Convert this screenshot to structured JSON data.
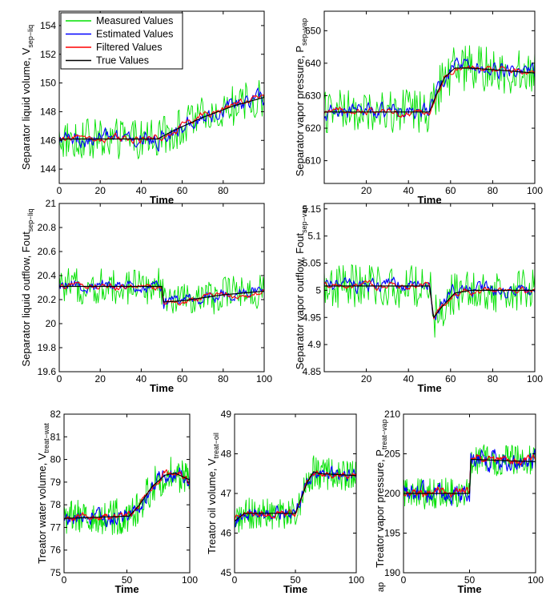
{
  "figure": {
    "legend_entries": [
      {
        "label": "Measured Values",
        "color": "#00e000"
      },
      {
        "label": "Estimated  Values",
        "color": "#0000ff"
      },
      {
        "label": "Filtered Values",
        "color": "#ff0000"
      },
      {
        "label": "True Values",
        "color": "#000000"
      }
    ],
    "cropped_label": "ap"
  },
  "chart_data": [
    {
      "id": "sep-liq-volume",
      "type": "line",
      "ylabel": "Separator liquid volume, V",
      "ylabel_sub": "sep−liq",
      "xlabel": "Time",
      "xlim": [
        0,
        100
      ],
      "ylim": [
        143,
        155
      ],
      "xticks": [
        0,
        20,
        40,
        60,
        80
      ],
      "yticks": [
        144,
        146,
        148,
        150,
        152,
        154
      ],
      "legend_position": "top-left",
      "true_values": {
        "x": [
          0,
          48,
          56,
          70,
          85,
          100
        ],
        "y": [
          146.1,
          146.1,
          146.7,
          147.6,
          148.4,
          149.0
        ]
      },
      "noise": {
        "measured": 1.4,
        "estimated": 0.55,
        "filtered": 0.3
      }
    },
    {
      "id": "sep-vapor-pressure",
      "type": "line",
      "ylabel": "Separator vapor pressure, P",
      "ylabel_sub": "sep−vap",
      "xlabel": "Time",
      "xlim": [
        0,
        100
      ],
      "ylim": [
        603,
        656
      ],
      "xticks": [
        20,
        40,
        60,
        80,
        100
      ],
      "yticks": [
        610,
        620,
        630,
        640,
        650
      ],
      "true_values": {
        "x": [
          0,
          50,
          53,
          57,
          62,
          70,
          100
        ],
        "y": [
          625,
          625,
          630,
          635.5,
          638.5,
          638.5,
          637
        ]
      },
      "noise": {
        "measured": 7,
        "estimated": 2.5,
        "filtered": 1.2
      }
    },
    {
      "id": "sep-liquid-outflow",
      "type": "line",
      "ylabel": "Separator liquid outflow, Fout",
      "ylabel_sub": "sep−liq",
      "xlabel": "Time",
      "xlim": [
        0,
        100
      ],
      "ylim": [
        19.6,
        21
      ],
      "xticks": [
        0,
        20,
        40,
        60,
        80,
        100
      ],
      "yticks": [
        19.6,
        19.8,
        20,
        20.2,
        20.4,
        20.6,
        20.8,
        21
      ],
      "true_values": {
        "x": [
          0,
          50,
          51,
          60,
          80,
          100
        ],
        "y": [
          20.31,
          20.31,
          20.18,
          20.19,
          20.24,
          20.27
        ]
      },
      "noise": {
        "measured": 0.15,
        "estimated": 0.05,
        "filtered": 0.03
      }
    },
    {
      "id": "sep-vapor-outflow",
      "type": "line",
      "ylabel": "Separator vapor outflow, Fout",
      "ylabel_sub": "sep−vap",
      "xlabel": "Time",
      "xlim": [
        0,
        100
      ],
      "ylim": [
        4.85,
        5.16
      ],
      "xticks": [
        20,
        40,
        60,
        80,
        100
      ],
      "yticks": [
        4.85,
        4.9,
        4.95,
        5,
        5.05,
        5.1,
        5.15
      ],
      "true_values": {
        "x": [
          0,
          50,
          52,
          56,
          62,
          70,
          100
        ],
        "y": [
          5.008,
          5.008,
          4.95,
          4.97,
          4.995,
          5.0,
          5.0
        ]
      },
      "noise": {
        "measured": 0.04,
        "estimated": 0.013,
        "filtered": 0.007
      }
    },
    {
      "id": "treator-water-volume",
      "type": "line",
      "ylabel": "Treator water volume, V",
      "ylabel_sub": "treat−wat",
      "xlabel": "Time",
      "xlim": [
        0,
        100
      ],
      "ylim": [
        75,
        82
      ],
      "xticks": [
        0,
        50,
        100
      ],
      "yticks": [
        75,
        76,
        77,
        78,
        79,
        80,
        81,
        82
      ],
      "true_values": {
        "x": [
          0,
          52,
          60,
          70,
          80,
          88,
          100
        ],
        "y": [
          77.4,
          77.5,
          78.0,
          78.8,
          79.3,
          79.4,
          79.1
        ]
      },
      "noise": {
        "measured": 0.8,
        "estimated": 0.3,
        "filtered": 0.15
      }
    },
    {
      "id": "treator-oil-volume",
      "type": "line",
      "ylabel": "Treator oil volume, V",
      "ylabel_sub": "treat−oil",
      "xlabel": "Time",
      "xlim": [
        0,
        100
      ],
      "ylim": [
        45,
        49
      ],
      "xticks": [
        0,
        50,
        100
      ],
      "yticks": [
        45,
        46,
        47,
        48,
        49
      ],
      "true_values": {
        "x": [
          0,
          8,
          50,
          55,
          60,
          65,
          70,
          100
        ],
        "y": [
          46.3,
          46.5,
          46.5,
          46.9,
          47.3,
          47.55,
          47.5,
          47.45
        ]
      },
      "noise": {
        "measured": 0.4,
        "estimated": 0.15,
        "filtered": 0.08
      }
    },
    {
      "id": "treator-vapor-pressure",
      "type": "line",
      "ylabel": "Treator vapor pressure, P",
      "ylabel_sub": "treat−vap",
      "xlabel": "Time",
      "xlim": [
        0,
        100
      ],
      "ylim": [
        190,
        210
      ],
      "xticks": [
        0,
        50,
        100
      ],
      "yticks": [
        190,
        195,
        200,
        205,
        210
      ],
      "true_values": {
        "x": [
          0,
          50,
          51,
          100
        ],
        "y": [
          200,
          200,
          204.3,
          204
        ]
      },
      "noise": {
        "measured": 2,
        "estimated": 1.2,
        "filtered": 0.6
      }
    }
  ]
}
